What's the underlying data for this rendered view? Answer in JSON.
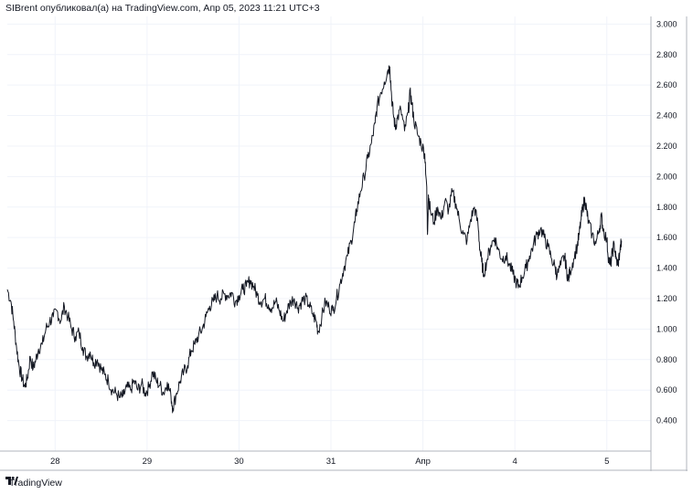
{
  "header": {
    "publisher_line": "SIBrent опубликовал(а) на TradingView.com, Апр 05, 2023 11:21 UTC+3"
  },
  "footer": {
    "brand": "TradingView",
    "logo_icon": "tradingview-logo-icon"
  },
  "colors": {
    "line": "#131722",
    "grid": "#f0f3fa",
    "axis": "#b2b5be",
    "background": "#ffffff"
  },
  "chart_data": {
    "type": "line",
    "title": "",
    "xlabel": "",
    "ylabel": "",
    "x_ticks": [
      {
        "label": "28",
        "pos": 1.0
      },
      {
        "label": "29",
        "pos": 2.0
      },
      {
        "label": "30",
        "pos": 3.0
      },
      {
        "label": "31",
        "pos": 4.0
      },
      {
        "label": "Апр",
        "pos": 5.0
      },
      {
        "label": "4",
        "pos": 6.0
      },
      {
        "label": "5",
        "pos": 7.0
      }
    ],
    "y_ticks": [
      "3.000",
      "2.800",
      "2.600",
      "2.400",
      "2.200",
      "2.000",
      "1.800",
      "1.600",
      "1.400",
      "1.200",
      "1.000",
      "0.800",
      "0.600",
      "0.400"
    ],
    "ylim": [
      0.2,
      3.05
    ],
    "xlim": [
      0.48,
      7.48
    ],
    "grid": true,
    "series": [
      {
        "points": [
          [
            0.48,
            1.26
          ],
          [
            0.52,
            1.18
          ],
          [
            0.55,
            1.05
          ],
          [
            0.58,
            0.88
          ],
          [
            0.61,
            0.75
          ],
          [
            0.64,
            0.68
          ],
          [
            0.67,
            0.62
          ],
          [
            0.7,
            0.68
          ],
          [
            0.73,
            0.82
          ],
          [
            0.76,
            0.74
          ],
          [
            0.79,
            0.8
          ],
          [
            0.82,
            0.87
          ],
          [
            0.86,
            0.9
          ],
          [
            0.9,
            1.0
          ],
          [
            0.94,
            1.05
          ],
          [
            0.98,
            1.08
          ],
          [
            1.02,
            1.12
          ],
          [
            1.06,
            1.05
          ],
          [
            1.1,
            1.15
          ],
          [
            1.14,
            1.08
          ],
          [
            1.18,
            1.0
          ],
          [
            1.22,
            0.95
          ],
          [
            1.26,
            0.98
          ],
          [
            1.3,
            0.88
          ],
          [
            1.34,
            0.82
          ],
          [
            1.38,
            0.85
          ],
          [
            1.42,
            0.78
          ],
          [
            1.46,
            0.8
          ],
          [
            1.5,
            0.74
          ],
          [
            1.54,
            0.7
          ],
          [
            1.58,
            0.66
          ],
          [
            1.62,
            0.6
          ],
          [
            1.66,
            0.58
          ],
          [
            1.7,
            0.55
          ],
          [
            1.74,
            0.56
          ],
          [
            1.78,
            0.62
          ],
          [
            1.82,
            0.6
          ],
          [
            1.86,
            0.66
          ],
          [
            1.9,
            0.6
          ],
          [
            1.94,
            0.64
          ],
          [
            1.98,
            0.58
          ],
          [
            2.02,
            0.62
          ],
          [
            2.06,
            0.72
          ],
          [
            2.1,
            0.66
          ],
          [
            2.14,
            0.63
          ],
          [
            2.18,
            0.58
          ],
          [
            2.22,
            0.65
          ],
          [
            2.26,
            0.56
          ],
          [
            2.28,
            0.48
          ],
          [
            2.32,
            0.58
          ],
          [
            2.36,
            0.66
          ],
          [
            2.4,
            0.72
          ],
          [
            2.44,
            0.76
          ],
          [
            2.48,
            0.86
          ],
          [
            2.52,
            0.9
          ],
          [
            2.56,
            0.96
          ],
          [
            2.6,
            1.0
          ],
          [
            2.64,
            1.08
          ],
          [
            2.68,
            1.15
          ],
          [
            2.72,
            1.18
          ],
          [
            2.76,
            1.22
          ],
          [
            2.8,
            1.2
          ],
          [
            2.84,
            1.23
          ],
          [
            2.88,
            1.22
          ],
          [
            2.92,
            1.24
          ],
          [
            2.96,
            1.18
          ],
          [
            3.0,
            1.22
          ],
          [
            3.04,
            1.26
          ],
          [
            3.08,
            1.28
          ],
          [
            3.12,
            1.32
          ],
          [
            3.16,
            1.28
          ],
          [
            3.2,
            1.22
          ],
          [
            3.24,
            1.18
          ],
          [
            3.28,
            1.2
          ],
          [
            3.32,
            1.16
          ],
          [
            3.36,
            1.14
          ],
          [
            3.4,
            1.18
          ],
          [
            3.44,
            1.12
          ],
          [
            3.48,
            1.05
          ],
          [
            3.52,
            1.12
          ],
          [
            3.56,
            1.18
          ],
          [
            3.6,
            1.2
          ],
          [
            3.64,
            1.14
          ],
          [
            3.68,
            1.18
          ],
          [
            3.72,
            1.2
          ],
          [
            3.76,
            1.16
          ],
          [
            3.8,
            1.1
          ],
          [
            3.84,
            1.05
          ],
          [
            3.86,
            0.98
          ],
          [
            3.9,
            1.08
          ],
          [
            3.94,
            1.18
          ],
          [
            3.98,
            1.14
          ],
          [
            4.02,
            1.12
          ],
          [
            4.06,
            1.2
          ],
          [
            4.1,
            1.3
          ],
          [
            4.14,
            1.4
          ],
          [
            4.18,
            1.48
          ],
          [
            4.22,
            1.58
          ],
          [
            4.26,
            1.7
          ],
          [
            4.28,
            1.78
          ],
          [
            4.32,
            1.9
          ],
          [
            4.36,
            2.0
          ],
          [
            4.4,
            2.12
          ],
          [
            4.44,
            2.22
          ],
          [
            4.48,
            2.35
          ],
          [
            4.5,
            2.45
          ],
          [
            4.54,
            2.55
          ],
          [
            4.58,
            2.62
          ],
          [
            4.62,
            2.7
          ],
          [
            4.64,
            2.72
          ],
          [
            4.66,
            2.52
          ],
          [
            4.68,
            2.4
          ],
          [
            4.7,
            2.32
          ],
          [
            4.72,
            2.38
          ],
          [
            4.76,
            2.44
          ],
          [
            4.8,
            2.3
          ],
          [
            4.84,
            2.42
          ],
          [
            4.86,
            2.55
          ],
          [
            4.88,
            2.48
          ],
          [
            4.9,
            2.38
          ],
          [
            4.94,
            2.28
          ],
          [
            4.98,
            2.22
          ],
          [
            5.02,
            2.15
          ],
          [
            5.04,
            1.95
          ],
          [
            5.05,
            1.62
          ],
          [
            5.06,
            1.88
          ],
          [
            5.08,
            1.78
          ],
          [
            5.12,
            1.7
          ],
          [
            5.16,
            1.8
          ],
          [
            5.2,
            1.72
          ],
          [
            5.24,
            1.84
          ],
          [
            5.28,
            1.78
          ],
          [
            5.32,
            1.9
          ],
          [
            5.36,
            1.82
          ],
          [
            5.4,
            1.7
          ],
          [
            5.44,
            1.62
          ],
          [
            5.48,
            1.58
          ],
          [
            5.52,
            1.72
          ],
          [
            5.56,
            1.8
          ],
          [
            5.6,
            1.68
          ],
          [
            5.62,
            1.52
          ],
          [
            5.64,
            1.44
          ],
          [
            5.66,
            1.36
          ],
          [
            5.7,
            1.46
          ],
          [
            5.74,
            1.55
          ],
          [
            5.78,
            1.6
          ],
          [
            5.82,
            1.52
          ],
          [
            5.86,
            1.46
          ],
          [
            5.9,
            1.48
          ],
          [
            5.94,
            1.42
          ],
          [
            5.98,
            1.36
          ],
          [
            6.02,
            1.3
          ],
          [
            6.04,
            1.28
          ],
          [
            6.08,
            1.34
          ],
          [
            6.12,
            1.4
          ],
          [
            6.16,
            1.48
          ],
          [
            6.2,
            1.55
          ],
          [
            6.24,
            1.62
          ],
          [
            6.28,
            1.66
          ],
          [
            6.32,
            1.6
          ],
          [
            6.36,
            1.54
          ],
          [
            6.4,
            1.46
          ],
          [
            6.44,
            1.4
          ],
          [
            6.46,
            1.35
          ],
          [
            6.5,
            1.42
          ],
          [
            6.54,
            1.48
          ],
          [
            6.56,
            1.4
          ],
          [
            6.58,
            1.32
          ],
          [
            6.6,
            1.38
          ],
          [
            6.64,
            1.46
          ],
          [
            6.68,
            1.55
          ],
          [
            6.7,
            1.62
          ],
          [
            6.72,
            1.72
          ],
          [
            6.74,
            1.8
          ],
          [
            6.76,
            1.85
          ],
          [
            6.78,
            1.78
          ],
          [
            6.8,
            1.7
          ],
          [
            6.84,
            1.62
          ],
          [
            6.88,
            1.56
          ],
          [
            6.92,
            1.66
          ],
          [
            6.94,
            1.74
          ],
          [
            6.96,
            1.66
          ],
          [
            7.0,
            1.58
          ],
          [
            7.02,
            1.46
          ],
          [
            7.04,
            1.42
          ],
          [
            7.06,
            1.5
          ],
          [
            7.08,
            1.56
          ],
          [
            7.1,
            1.46
          ],
          [
            7.12,
            1.42
          ],
          [
            7.14,
            1.5
          ],
          [
            7.16,
            1.58
          ]
        ]
      }
    ]
  }
}
